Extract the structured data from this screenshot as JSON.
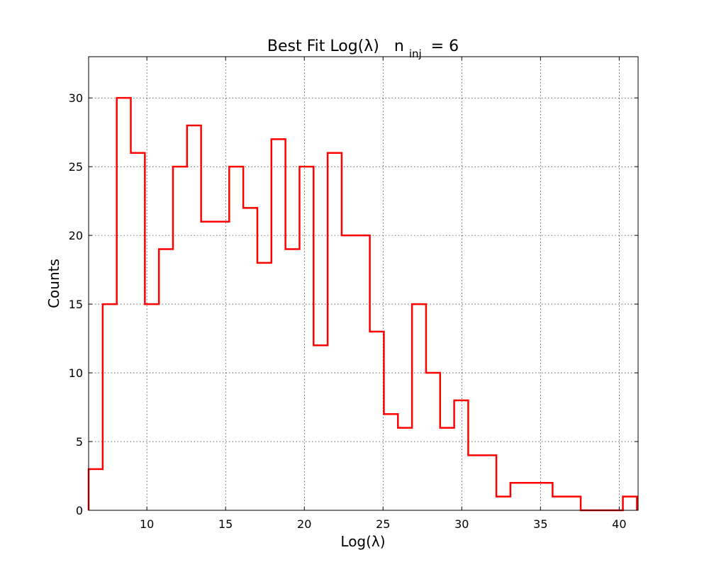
{
  "chart_data": {
    "type": "histogram",
    "title": {
      "prefix": "Best Fit Log(λ)",
      "n_symbol": "n",
      "n_subscript": "inj",
      "suffix": "= 6"
    },
    "xlabel": "Log(λ)",
    "ylabel": "Counts",
    "xlim": [
      6.3,
      41.2
    ],
    "ylim": [
      0,
      33
    ],
    "xticks": [
      10,
      15,
      20,
      25,
      30,
      35,
      40
    ],
    "yticks": [
      0,
      5,
      10,
      15,
      20,
      25,
      30
    ],
    "grid": true,
    "series": [
      {
        "name": "Best Fit Log(λ)",
        "color": "#ff0000",
        "bin_edges": [
          6.3,
          7.193,
          8.086,
          8.979,
          9.872,
          10.765,
          11.658,
          12.551,
          13.444,
          14.337,
          15.23,
          16.123,
          17.016,
          17.909,
          18.802,
          19.695,
          20.588,
          21.481,
          22.374,
          23.267,
          24.16,
          25.053,
          25.946,
          26.839,
          27.732,
          28.625,
          29.518,
          30.411,
          31.304,
          32.197,
          33.09,
          33.983,
          34.876,
          35.769,
          36.662,
          37.555,
          38.448,
          39.341,
          40.234,
          41.127
        ],
        "counts": [
          3,
          15,
          30,
          26,
          15,
          19,
          25,
          28,
          21,
          21,
          25,
          22,
          18,
          27,
          19,
          25,
          12,
          26,
          20,
          20,
          13,
          7,
          6,
          15,
          10,
          6,
          8,
          4,
          4,
          1,
          2,
          2,
          2,
          1,
          1,
          0,
          0,
          0,
          1
        ]
      }
    ]
  }
}
